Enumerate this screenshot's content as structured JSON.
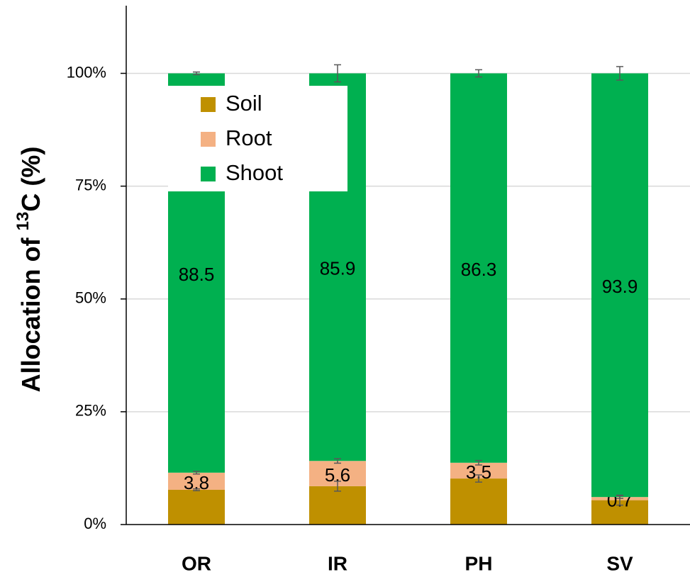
{
  "chart_data": {
    "type": "stacked_bar",
    "y_label": [
      "Allocation of ",
      "13",
      "C (%)"
    ],
    "categories": [
      "OR",
      "IR",
      "PH",
      "SV"
    ],
    "series": [
      {
        "name": "Soil",
        "color": "#bf9000",
        "values": [
          7.7,
          8.5,
          10.2,
          5.4
        ],
        "errors": [
          0.2,
          1.1,
          0.8,
          1.1
        ]
      },
      {
        "name": "Root",
        "color": "#f4b183",
        "values": [
          3.8,
          5.6,
          3.5,
          0.7
        ],
        "errors": [
          0.3,
          0.5,
          0.5,
          0.3
        ]
      },
      {
        "name": "Shoot",
        "color": "#00b050",
        "values": [
          88.5,
          85.9,
          86.3,
          93.9
        ],
        "errors": [
          0.3,
          1.9,
          0.8,
          1.5
        ]
      }
    ],
    "ylim": [
      0,
      115
    ],
    "yticks": [
      {
        "value": 0,
        "label": "0%"
      },
      {
        "value": 25,
        "label": "25%"
      },
      {
        "value": 50,
        "label": "50%"
      },
      {
        "value": 75,
        "label": "75%"
      },
      {
        "value": 100,
        "label": "100%"
      }
    ],
    "grid": true,
    "legend": "upper left"
  }
}
